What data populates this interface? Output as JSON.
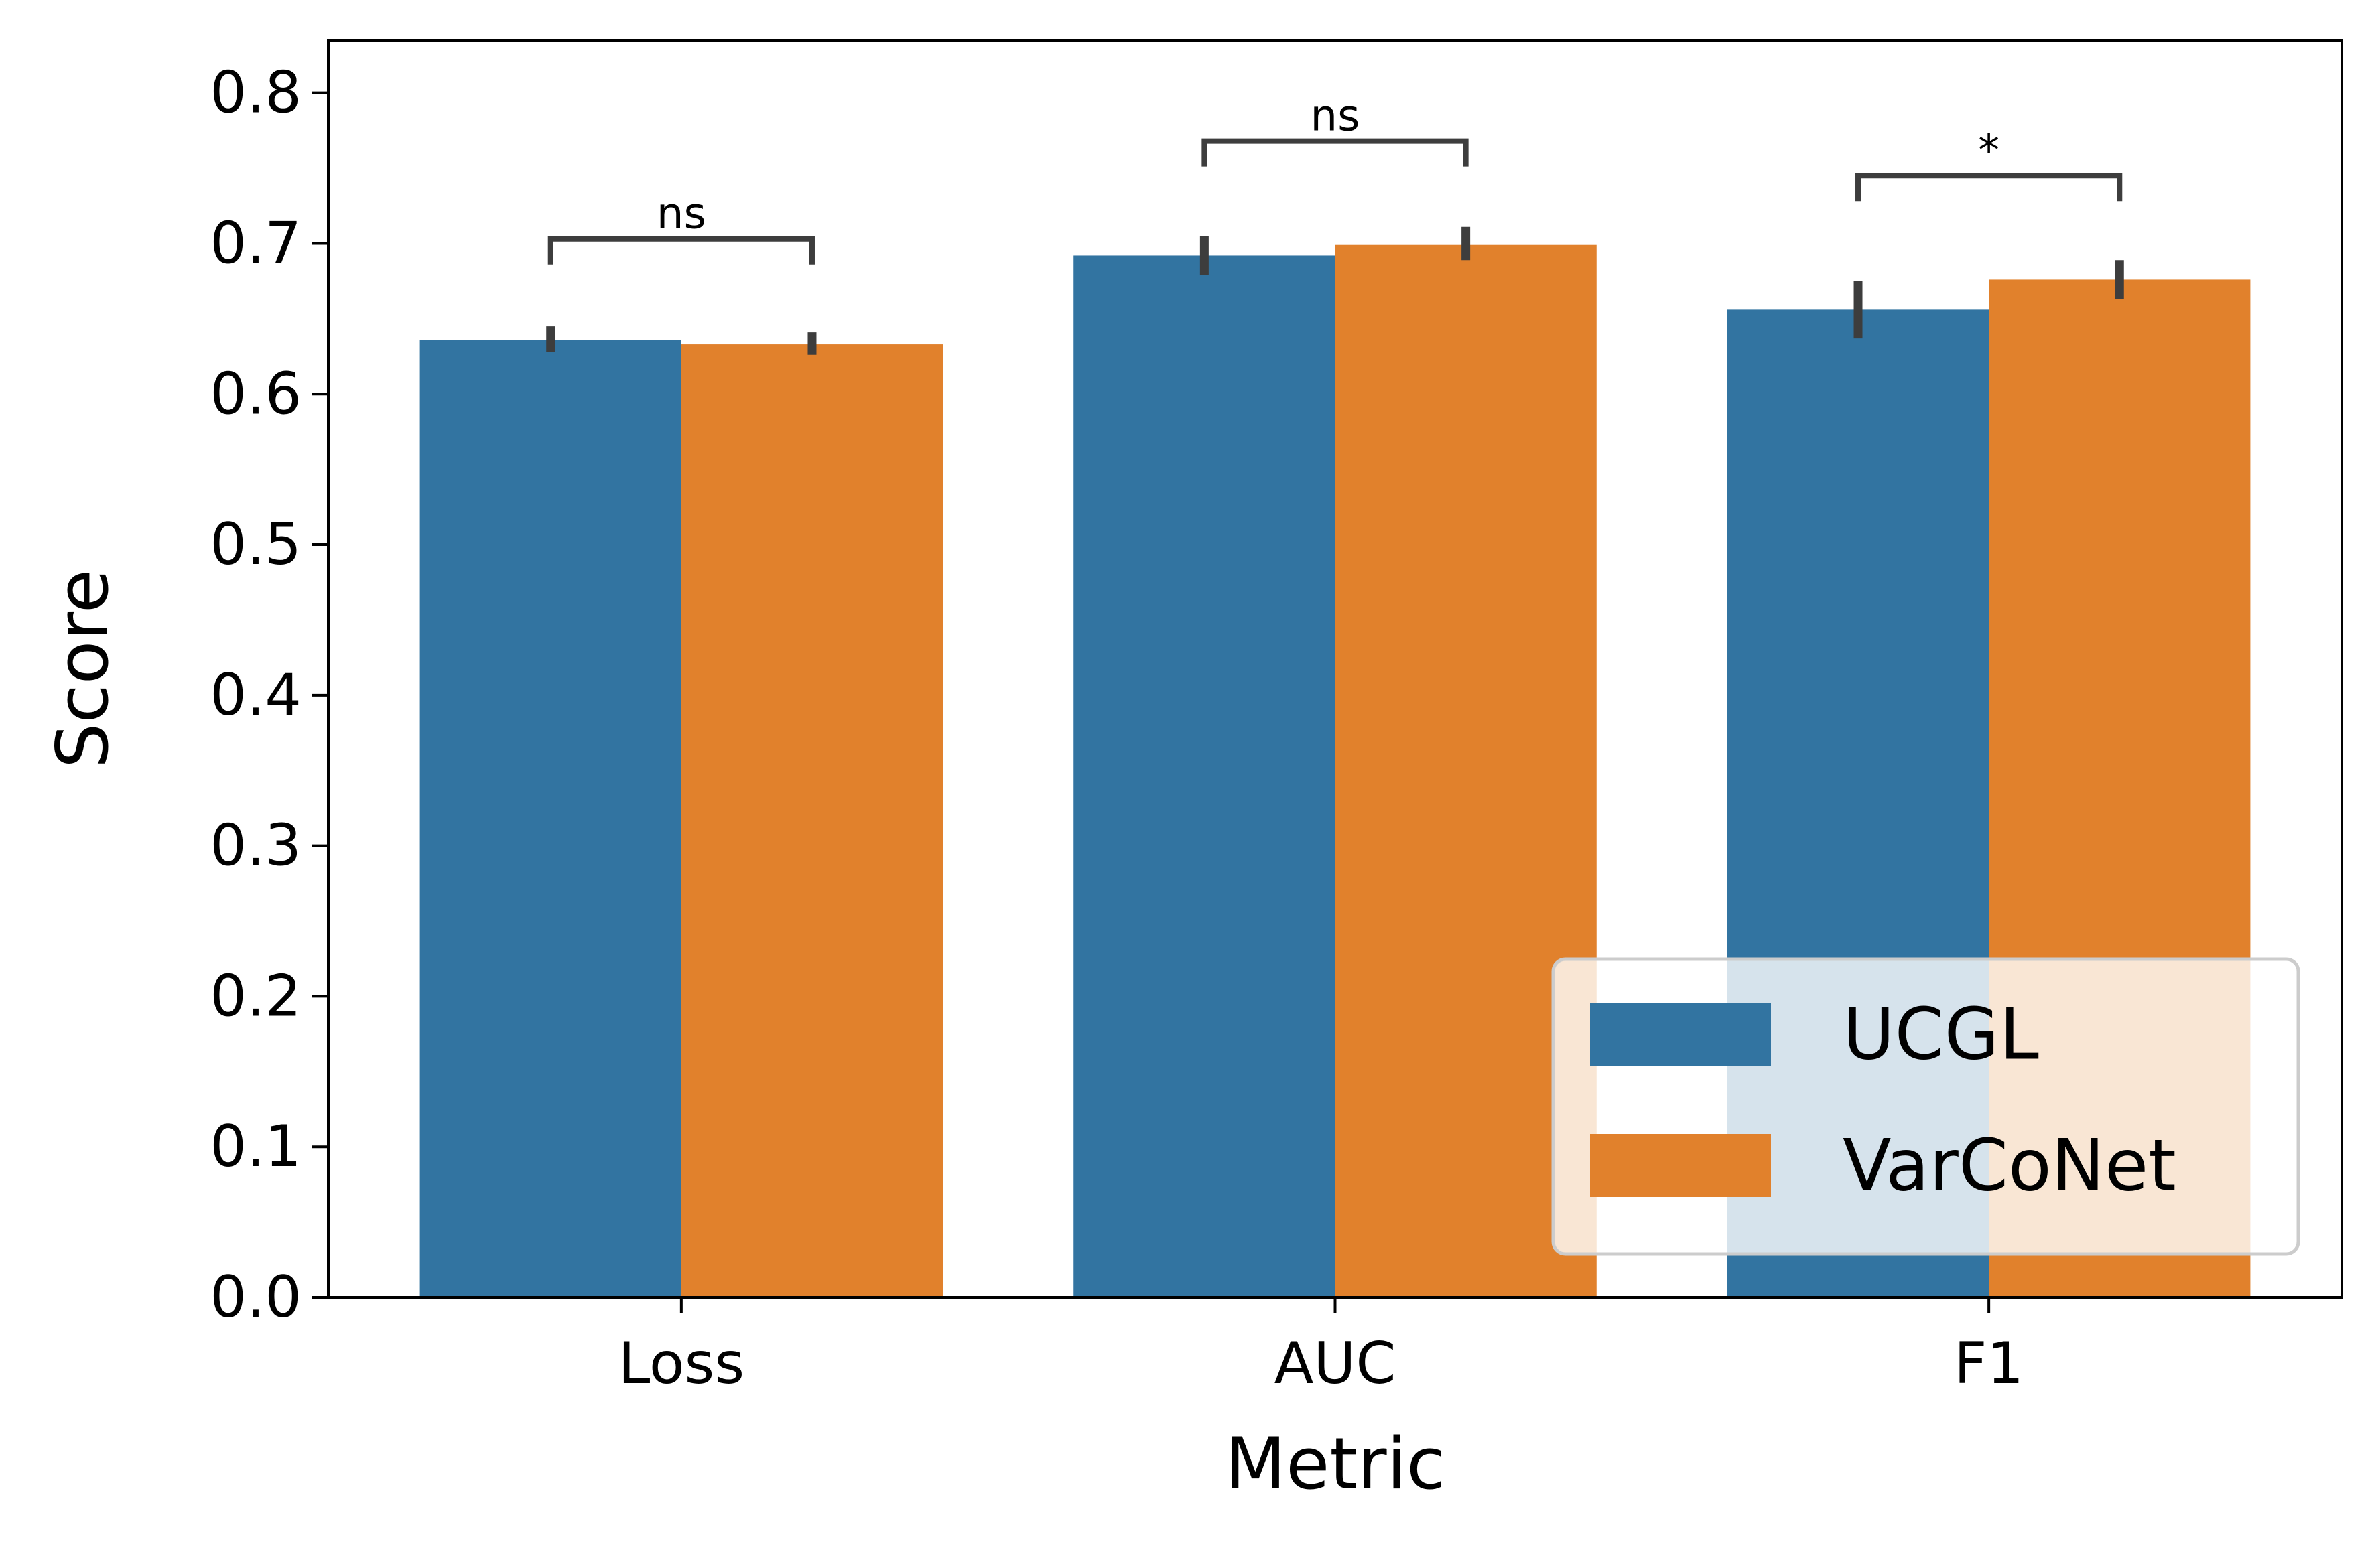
{
  "chart_data": {
    "type": "bar",
    "xlabel": "Metric",
    "ylabel": "Score",
    "ylim": [
      0,
      0.835
    ],
    "yticks": [
      "0.0",
      "0.1",
      "0.2",
      "0.3",
      "0.4",
      "0.5",
      "0.6",
      "0.7",
      "0.8"
    ],
    "categories": [
      "Loss",
      "AUC",
      "F1"
    ],
    "series": [
      {
        "name": "UCGL",
        "color": "#3274a1",
        "values": [
          0.636,
          0.692,
          0.656
        ],
        "err_low": [
          0.628,
          0.679,
          0.637
        ],
        "err_high": [
          0.645,
          0.705,
          0.675
        ]
      },
      {
        "name": "VarCoNet",
        "color": "#e1812c",
        "values": [
          0.633,
          0.699,
          0.676
        ],
        "err_low": [
          0.626,
          0.689,
          0.663
        ],
        "err_high": [
          0.641,
          0.711,
          0.689
        ]
      }
    ],
    "annotations": [
      {
        "category": "Loss",
        "text": "ns",
        "level": 0.703
      },
      {
        "category": "AUC",
        "text": "ns",
        "level": 0.768
      },
      {
        "category": "F1",
        "text": "*",
        "level": 0.745
      }
    ],
    "legend": {
      "placement": "lower right",
      "entries": [
        "UCGL",
        "VarCoNet"
      ]
    }
  }
}
